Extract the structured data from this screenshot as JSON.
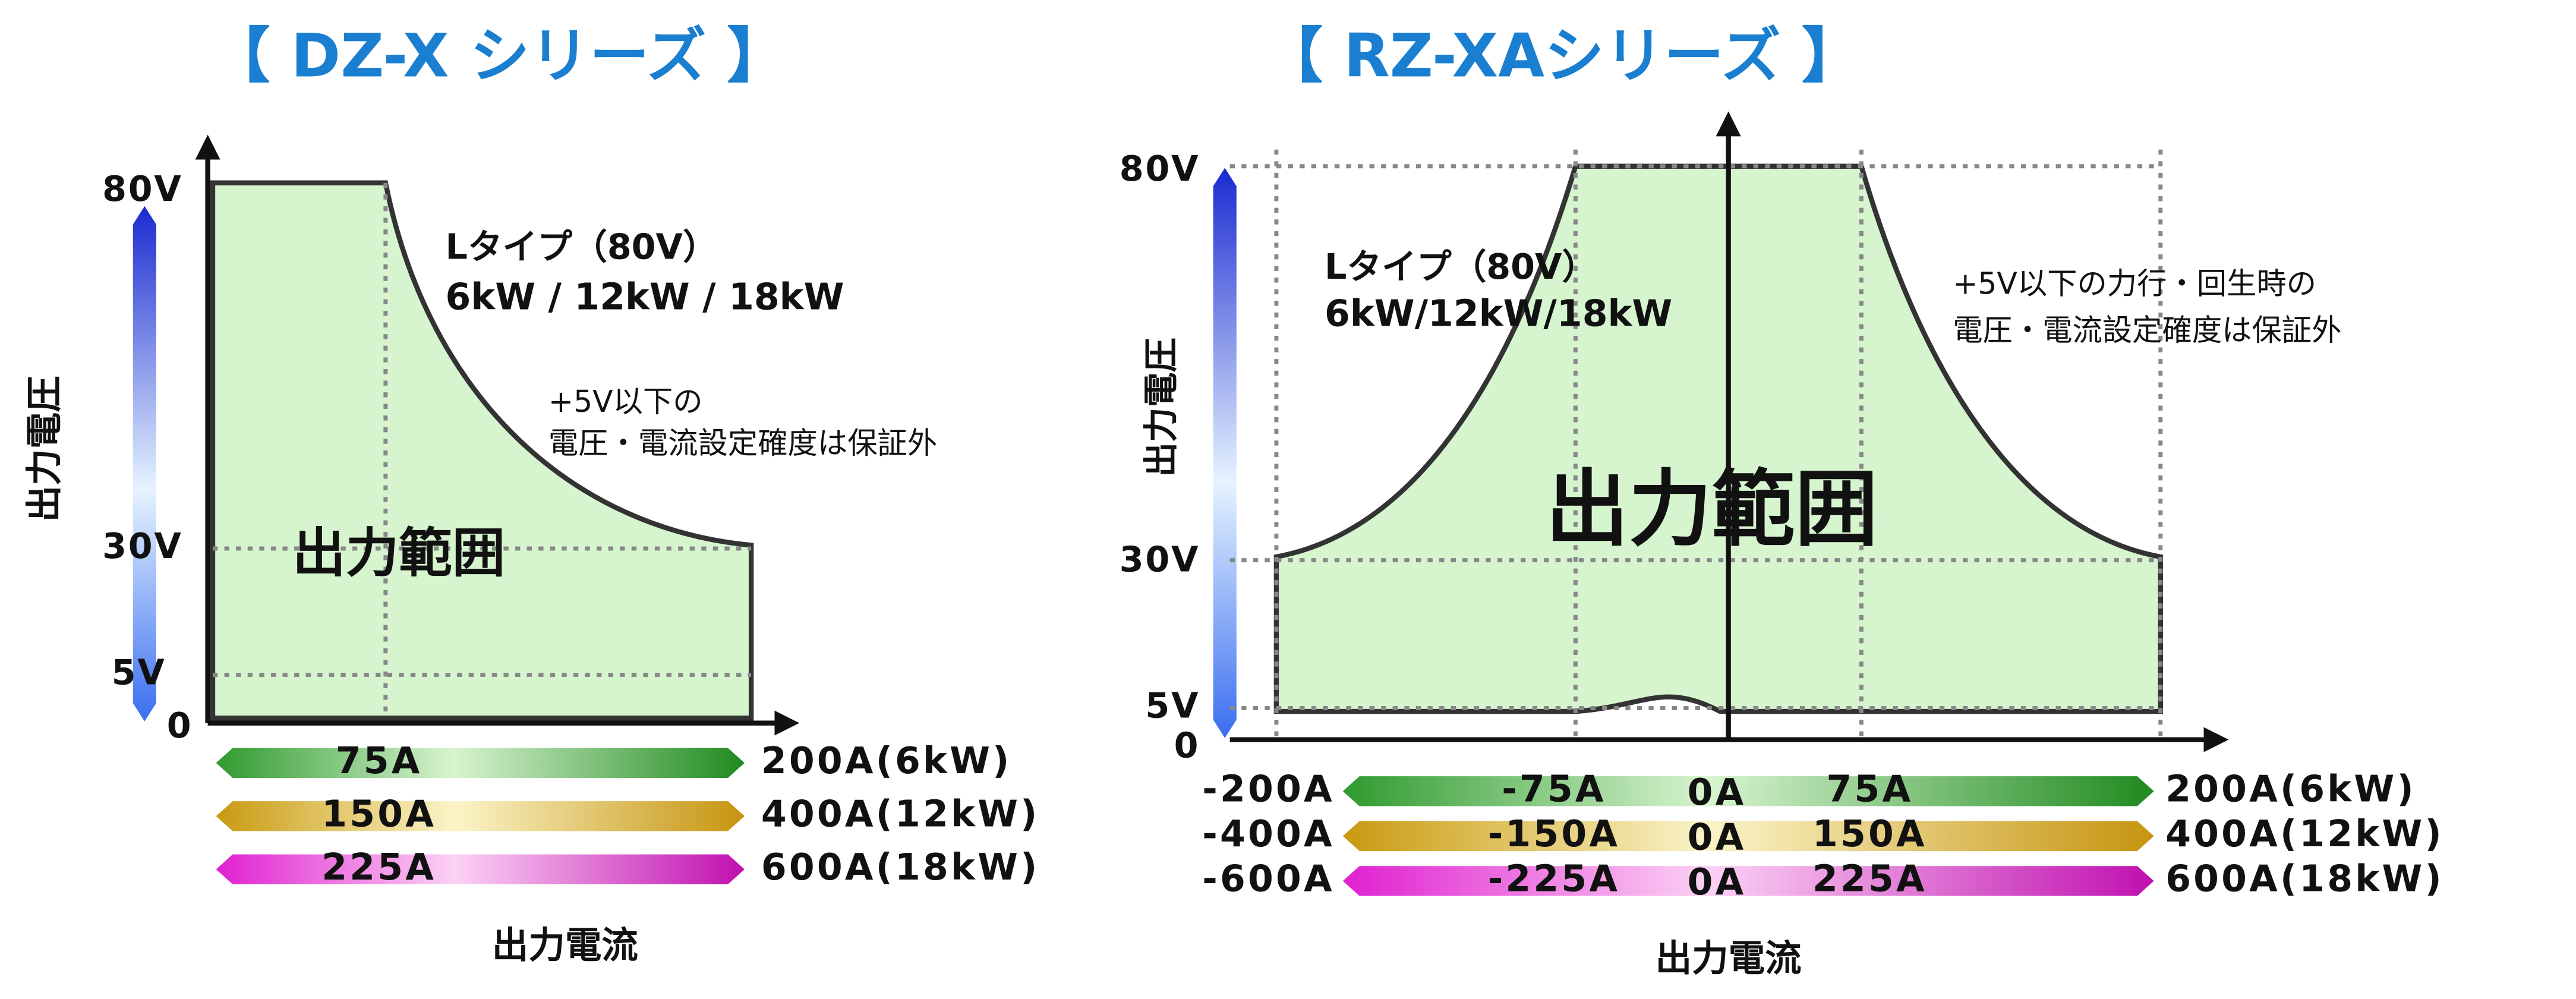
{
  "left": {
    "title": "【 DZ-X シリーズ 】",
    "y_axis_label": "出力電圧",
    "y_ticks": [
      "80V",
      "30V",
      "5V",
      "0"
    ],
    "region_label": "出力範囲",
    "type_label": "Lタイプ（80V）",
    "capacity_label": "6kW / 12kW / 18kW",
    "note": [
      "+5V以下の",
      "電圧・電流設定確度は保証外"
    ],
    "current_rows": [
      {
        "mid": "75A",
        "max": "200A(6kW)"
      },
      {
        "mid": "150A",
        "max": "400A(12kW)"
      },
      {
        "mid": "225A",
        "max": "600A(18kW)"
      }
    ],
    "x_axis_label": "出力電流"
  },
  "right": {
    "title": "【 RZ-XAシリーズ 】",
    "y_axis_label": "出力電圧",
    "y_ticks": [
      "80V",
      "30V",
      "5V",
      "0"
    ],
    "region_label": "出力範囲",
    "type_label": "Lタイプ（80V）",
    "capacity_label": "6kW/12kW/18kW",
    "note": [
      "+5V以下の力行・回生時の",
      "電圧・電流設定確度は保証外"
    ],
    "current_rows": [
      {
        "neg_max": "-200A",
        "neg_mid": "-75A",
        "zero": "0A",
        "mid": "75A",
        "max": "200A(6kW)"
      },
      {
        "neg_max": "-400A",
        "neg_mid": "-150A",
        "zero": "0A",
        "mid": "150A",
        "max": "400A(12kW)"
      },
      {
        "neg_max": "-600A",
        "neg_mid": "-225A",
        "zero": "0A",
        "mid": "225A",
        "max": "600A(18kW)"
      }
    ],
    "x_axis_label": "出力電流"
  }
}
